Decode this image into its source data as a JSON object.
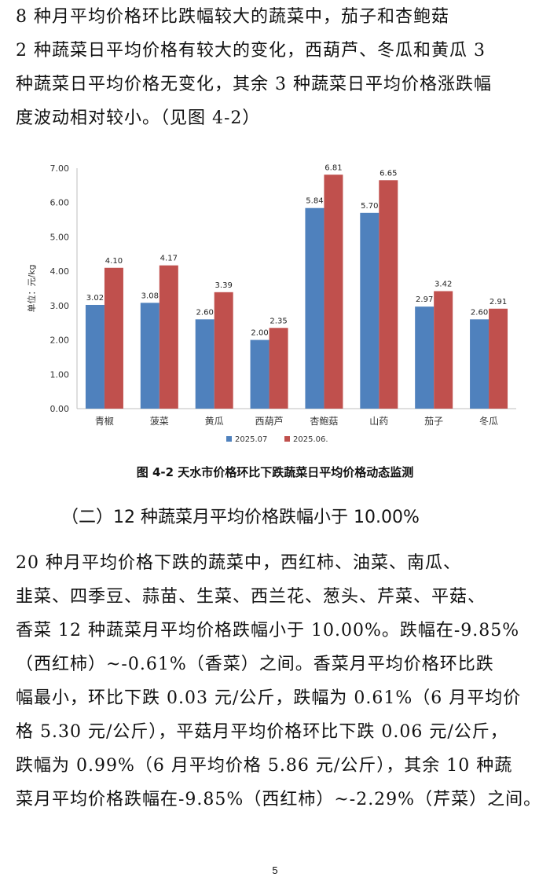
{
  "paragraph1": {
    "lines": [
      "    8 种月平均价格环比跌幅较大的蔬菜中，茄子和杏鲍菇",
      "2 种蔬菜日平均价格有较大的变化，西葫芦、冬瓜和黄瓜 3",
      "种蔬菜日平均价格无变化，其余 3 种蔬菜日平均价格涨跌幅",
      "度波动相对较小。（见图 4-2）"
    ]
  },
  "chart_data": {
    "type": "bar",
    "categories": [
      "青椒",
      "菠菜",
      "黄瓜",
      "西葫芦",
      "杏鲍菇",
      "山药",
      "茄子",
      "冬瓜"
    ],
    "series": [
      {
        "name": "2025.07",
        "values": [
          3.02,
          3.08,
          2.6,
          2.0,
          5.84,
          5.7,
          2.97,
          2.6
        ],
        "color": "#4F81BD"
      },
      {
        "name": "2025.06.",
        "values": [
          4.1,
          4.17,
          3.39,
          2.35,
          6.81,
          6.65,
          3.42,
          2.91
        ],
        "color": "#C0504D"
      }
    ],
    "ylabel": "单位：元/kg",
    "ylim": [
      0,
      7
    ],
    "yticks": [
      "0.00",
      "1.00",
      "2.00",
      "3.00",
      "4.00",
      "5.00",
      "6.00",
      "7.00"
    ],
    "grid": false,
    "legend_position": "bottom"
  },
  "caption": "图 4-2  天水市价格环比下跌蔬菜日平均价格动态监测",
  "subheading": "（二）12 种蔬菜月平均价格跌幅小于 10.00%",
  "paragraph2": {
    "lines": [
      "    20 种月平均价格下跌的蔬菜中，西红柿、油菜、南瓜、",
      "韭菜、四季豆、蒜苗、生菜、西兰花、葱头、芹菜、平菇、",
      "香菜 12 种蔬菜月平均价格跌幅小于 10.00%。跌幅在-9.85%",
      "（西红柿）~-0.61%（香菜）之间。香菜月平均价格环比跌",
      "幅最小，环比下跌 0.03 元/公斤，跌幅为 0.61%（6 月平均价",
      "格 5.30 元/公斤），平菇月平均价格环比下跌 0.06 元/公斤，",
      "跌幅为 0.99%（6 月平均价格 5.86 元/公斤），其余 10 种蔬",
      "菜月平均价格跌幅在-9.85%（西红柿）~-2.29%（芹菜）之间。"
    ]
  },
  "page_number": "5"
}
